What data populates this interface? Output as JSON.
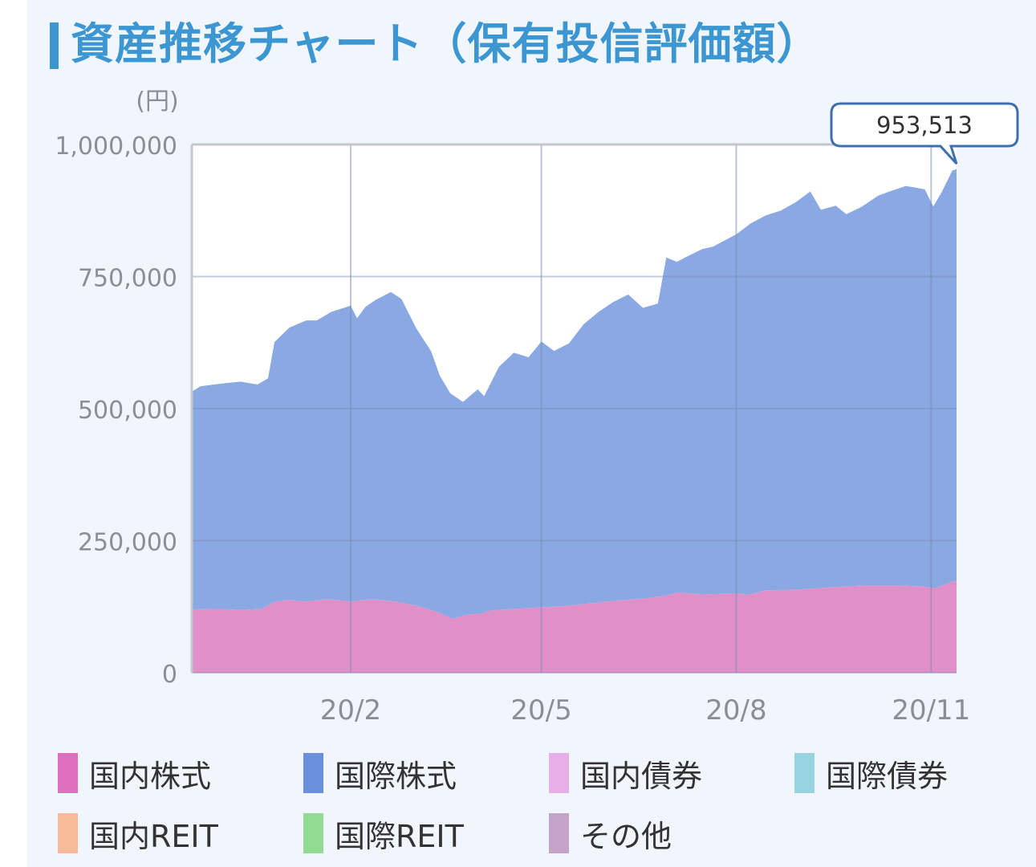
{
  "title": "資産推移チャート（保有投信評価額）",
  "chart_data": {
    "type": "area",
    "stacked": true,
    "y_unit_label": "(円)",
    "ylim": [
      0,
      1000000
    ],
    "y_ticks": [
      {
        "value": 0,
        "label": "0"
      },
      {
        "value": 250000,
        "label": "250,000"
      },
      {
        "value": 500000,
        "label": "500,000"
      },
      {
        "value": 750000,
        "label": "750,000"
      },
      {
        "value": 1000000,
        "label": "1,000,000"
      }
    ],
    "x_ticks": [
      {
        "x": "2020-01-31",
        "label": "20/2"
      },
      {
        "x": "2020-04-30",
        "label": "20/5"
      },
      {
        "x": "2020-07-31",
        "label": "20/8"
      },
      {
        "x": "2020-10-31",
        "label": "20/11"
      }
    ],
    "xlim": [
      "2019-11-17",
      "2020-11-12"
    ],
    "grid": true,
    "legend_position": "bottom",
    "tooltip": {
      "x": "2020-11-12",
      "label": "953,513"
    },
    "series": [
      {
        "name": "国内株式",
        "color": "#e08fc8",
        "points": [
          [
            "2019-11-17",
            120000
          ],
          [
            "2019-11-30",
            121000
          ],
          [
            "2019-12-10",
            119000
          ],
          [
            "2019-12-20",
            121000
          ],
          [
            "2019-12-26",
            134000
          ],
          [
            "2020-01-02",
            138000
          ],
          [
            "2020-01-10",
            135000
          ],
          [
            "2020-01-20",
            139000
          ],
          [
            "2020-01-31",
            135000
          ],
          [
            "2020-02-10",
            139000
          ],
          [
            "2020-02-21",
            135000
          ],
          [
            "2020-03-01",
            128000
          ],
          [
            "2020-03-08",
            120000
          ],
          [
            "2020-03-15",
            110000
          ],
          [
            "2020-03-19",
            102000
          ],
          [
            "2020-03-26",
            110000
          ],
          [
            "2020-04-02",
            112000
          ],
          [
            "2020-04-06",
            118000
          ],
          [
            "2020-04-13",
            120000
          ],
          [
            "2020-04-23",
            122000
          ],
          [
            "2020-04-30",
            124000
          ],
          [
            "2020-05-10",
            126000
          ],
          [
            "2020-05-20",
            130000
          ],
          [
            "2020-05-31",
            135000
          ],
          [
            "2020-06-10",
            138000
          ],
          [
            "2020-06-20",
            142000
          ],
          [
            "2020-06-28",
            146000
          ],
          [
            "2020-07-03",
            152000
          ],
          [
            "2020-07-15",
            148000
          ],
          [
            "2020-07-31",
            150000
          ],
          [
            "2020-08-06",
            148000
          ],
          [
            "2020-08-14",
            156000
          ],
          [
            "2020-08-31",
            158000
          ],
          [
            "2020-09-15",
            162000
          ],
          [
            "2020-09-30",
            165000
          ],
          [
            "2020-10-15",
            165000
          ],
          [
            "2020-10-28",
            163000
          ],
          [
            "2020-11-02",
            160000
          ],
          [
            "2020-11-07",
            168000
          ],
          [
            "2020-11-12",
            175000
          ]
        ]
      },
      {
        "name": "国際株式",
        "color": "#8aa9e2",
        "points": [
          [
            "2019-11-17",
            412000
          ],
          [
            "2019-11-21",
            422000
          ],
          [
            "2019-11-30",
            426000
          ],
          [
            "2019-12-10",
            432000
          ],
          [
            "2019-12-18",
            425000
          ],
          [
            "2019-12-23",
            430000
          ],
          [
            "2019-12-26",
            492000
          ],
          [
            "2020-01-02",
            515000
          ],
          [
            "2020-01-10",
            532000
          ],
          [
            "2020-01-15",
            530000
          ],
          [
            "2020-01-22",
            545000
          ],
          [
            "2020-01-31",
            560000
          ],
          [
            "2020-02-03",
            535000
          ],
          [
            "2020-02-07",
            555000
          ],
          [
            "2020-02-12",
            568000
          ],
          [
            "2020-02-19",
            585000
          ],
          [
            "2020-02-24",
            575000
          ],
          [
            "2020-03-02",
            525000
          ],
          [
            "2020-03-09",
            490000
          ],
          [
            "2020-03-13",
            450000
          ],
          [
            "2020-03-18",
            425000
          ],
          [
            "2020-03-24",
            405000
          ],
          [
            "2020-03-31",
            425000
          ],
          [
            "2020-04-03",
            410000
          ],
          [
            "2020-04-10",
            460000
          ],
          [
            "2020-04-17",
            485000
          ],
          [
            "2020-04-24",
            475000
          ],
          [
            "2020-04-30",
            503000
          ],
          [
            "2020-05-06",
            484000
          ],
          [
            "2020-05-13",
            496000
          ],
          [
            "2020-05-20",
            530000
          ],
          [
            "2020-05-27",
            550000
          ],
          [
            "2020-06-03",
            566000
          ],
          [
            "2020-06-10",
            578000
          ],
          [
            "2020-06-17",
            550000
          ],
          [
            "2020-06-24",
            555000
          ],
          [
            "2020-06-28",
            640000
          ],
          [
            "2020-07-03",
            626000
          ],
          [
            "2020-07-08",
            638000
          ],
          [
            "2020-07-15",
            654000
          ],
          [
            "2020-07-20",
            658000
          ],
          [
            "2020-07-27",
            672000
          ],
          [
            "2020-07-31",
            680000
          ],
          [
            "2020-08-07",
            702000
          ],
          [
            "2020-08-14",
            710000
          ],
          [
            "2020-08-21",
            718000
          ],
          [
            "2020-08-28",
            733000
          ],
          [
            "2020-09-04",
            752000
          ],
          [
            "2020-09-09",
            716000
          ],
          [
            "2020-09-16",
            722000
          ],
          [
            "2020-09-21",
            705000
          ],
          [
            "2020-09-28",
            717000
          ],
          [
            "2020-10-06",
            738000
          ],
          [
            "2020-10-12",
            747000
          ],
          [
            "2020-10-19",
            757000
          ],
          [
            "2020-10-23",
            755000
          ],
          [
            "2020-10-28",
            752000
          ],
          [
            "2020-11-01",
            722000
          ],
          [
            "2020-11-05",
            745000
          ],
          [
            "2020-11-10",
            778513
          ],
          [
            "2020-11-12",
            778513
          ]
        ]
      }
    ],
    "legend": [
      {
        "name": "国内株式",
        "color": "#df6fbf"
      },
      {
        "name": "国際株式",
        "color": "#6a8fdc"
      },
      {
        "name": "国内債券",
        "color": "#e8aee6"
      },
      {
        "name": "国際債券",
        "color": "#98d3e0"
      },
      {
        "name": "国内REIT",
        "color": "#f8bb9a"
      },
      {
        "name": "国際REIT",
        "color": "#92db92"
      },
      {
        "name": "その他",
        "color": "#c3a3c8"
      }
    ]
  }
}
